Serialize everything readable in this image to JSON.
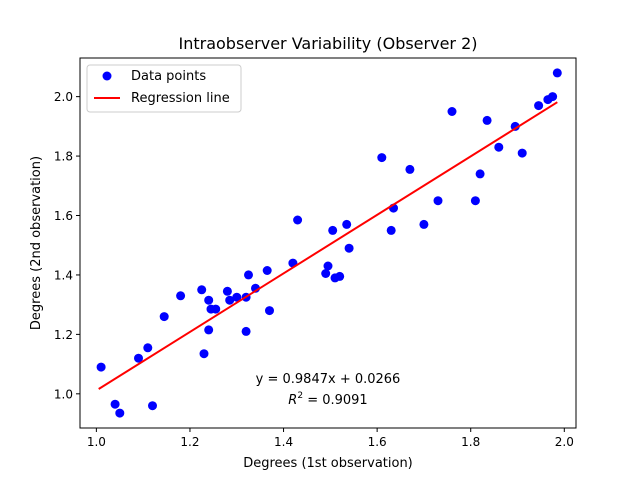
{
  "chart_data": {
    "type": "scatter",
    "title": "Intraobserver Variability (Observer 2)",
    "xlabel": "Degrees (1st observation)",
    "ylabel": "Degrees (2nd observation)",
    "xlim": [
      0.965,
      2.025
    ],
    "ylim": [
      0.885,
      2.13
    ],
    "xticks": [
      "1.0",
      "1.2",
      "1.4",
      "1.6",
      "1.8",
      "2.0"
    ],
    "yticks": [
      "1.0",
      "1.2",
      "1.4",
      "1.6",
      "1.8",
      "2.0"
    ],
    "grid": false,
    "legend": {
      "position": "top-left",
      "entries": [
        "Data points",
        "Regression line"
      ]
    },
    "series": [
      {
        "name": "Data points",
        "kind": "scatter",
        "color": "#0000ff",
        "points": [
          [
            1.01,
            1.09
          ],
          [
            1.04,
            0.965
          ],
          [
            1.05,
            0.935
          ],
          [
            1.09,
            1.12
          ],
          [
            1.11,
            1.155
          ],
          [
            1.12,
            0.96
          ],
          [
            1.145,
            1.26
          ],
          [
            1.18,
            1.33
          ],
          [
            1.225,
            1.35
          ],
          [
            1.23,
            1.135
          ],
          [
            1.24,
            1.215
          ],
          [
            1.24,
            1.315
          ],
          [
            1.245,
            1.285
          ],
          [
            1.255,
            1.285
          ],
          [
            1.28,
            1.345
          ],
          [
            1.285,
            1.315
          ],
          [
            1.3,
            1.325
          ],
          [
            1.32,
            1.21
          ],
          [
            1.32,
            1.325
          ],
          [
            1.325,
            1.4
          ],
          [
            1.34,
            1.355
          ],
          [
            1.365,
            1.415
          ],
          [
            1.37,
            1.28
          ],
          [
            1.42,
            1.44
          ],
          [
            1.43,
            1.585
          ],
          [
            1.49,
            1.405
          ],
          [
            1.495,
            1.43
          ],
          [
            1.505,
            1.55
          ],
          [
            1.51,
            1.39
          ],
          [
            1.52,
            1.395
          ],
          [
            1.535,
            1.57
          ],
          [
            1.54,
            1.49
          ],
          [
            1.61,
            1.795
          ],
          [
            1.63,
            1.55
          ],
          [
            1.635,
            1.625
          ],
          [
            1.67,
            1.755
          ],
          [
            1.7,
            1.57
          ],
          [
            1.73,
            1.65
          ],
          [
            1.76,
            1.95
          ],
          [
            1.81,
            1.65
          ],
          [
            1.82,
            1.74
          ],
          [
            1.835,
            1.92
          ],
          [
            1.86,
            1.83
          ],
          [
            1.895,
            1.9
          ],
          [
            1.91,
            1.81
          ],
          [
            1.945,
            1.97
          ],
          [
            1.965,
            1.99
          ],
          [
            1.975,
            2.0
          ],
          [
            1.985,
            2.08
          ]
        ]
      },
      {
        "name": "Regression line",
        "kind": "line",
        "color": "#ff0000",
        "slope": 0.9847,
        "intercept": 0.0266,
        "x_range": [
          1.005,
          1.985
        ]
      }
    ],
    "annotations": {
      "equation": "y = 0.9847x + 0.0266",
      "r_squared_base": "R",
      "r_squared_exp": "2",
      "r_squared_value": " = 0.9091",
      "position": "bottom-center"
    }
  }
}
